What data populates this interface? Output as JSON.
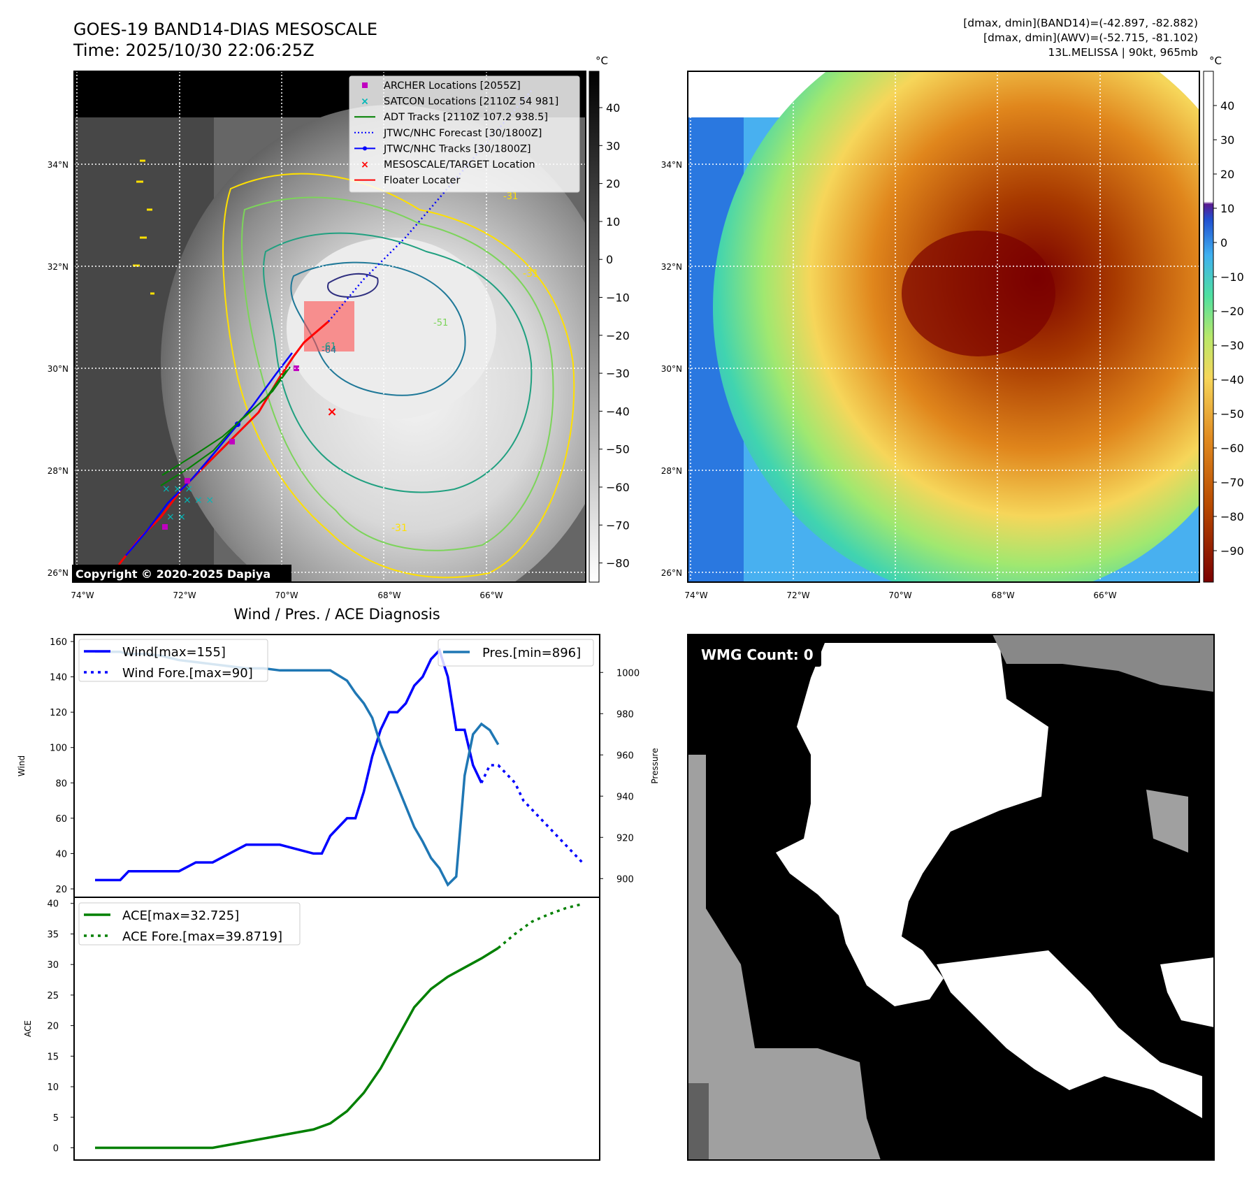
{
  "header": {
    "title": "GOES-19 BAND14-DIAS MESOSCALE",
    "time": "Time: 2025/10/30 22:06:25Z",
    "dmax_band14": "[dmax, dmin](BAND14)=(-42.897, -82.882)",
    "dmax_awv": "[dmax, dmin](AWV)=(-52.715, -81.102)",
    "storm": "13L.MELISSA | 90kt, 965mb"
  },
  "map": {
    "lat_labels": [
      "34°N",
      "32°N",
      "30°N",
      "28°N",
      "26°N"
    ],
    "lon_labels": [
      "74°W",
      "72°W",
      "70°W",
      "68°W",
      "66°W"
    ],
    "copyright": "Copyright © 2020-2025 Dapiya",
    "legend": [
      {
        "label": "ARCHER Locations [2055Z]",
        "color": "#c000c0",
        "marker": "square"
      },
      {
        "label": "SATCON Locations [2110Z 54 981]",
        "color": "#00b8b8",
        "marker": "x"
      },
      {
        "label": "ADT Tracks [2110Z 107.2 938.5]",
        "color": "#008000",
        "marker": "line"
      },
      {
        "label": "JTWC/NHC Forecast [30/1800Z]",
        "color": "#0000ff",
        "marker": "dotted"
      },
      {
        "label": "JTWC/NHC Tracks [30/1800Z]",
        "color": "#0000ff",
        "marker": "line-dot"
      },
      {
        "label": "MESOSCALE/TARGET Location",
        "color": "#ff0000",
        "marker": "x"
      },
      {
        "label": "Floater Locater",
        "color": "#ff0000",
        "marker": "line"
      }
    ],
    "contour_labels": [
      "-31",
      "-51",
      "-61",
      "-64",
      "-31",
      "-31"
    ]
  },
  "colorbar_gray": {
    "unit": "°C",
    "ticks": [
      "40",
      "30",
      "20",
      "10",
      "0",
      "−10",
      "−20",
      "−30",
      "−40",
      "−50",
      "−60",
      "−70",
      "−80"
    ]
  },
  "colorbar_color": {
    "unit": "°C",
    "ticks": [
      "40",
      "30",
      "20",
      "10",
      "0",
      "−10",
      "−20",
      "−30",
      "−40",
      "−50",
      "−60",
      "−70",
      "−80",
      "−90"
    ]
  },
  "wmg": {
    "label": "WMG Count: 0"
  },
  "chart_data": [
    {
      "type": "line",
      "title": "Wind / Pres. / ACE Diagnosis",
      "ylabel": "Wind",
      "ylabel_right": "Pressure",
      "ylim": [
        20,
        160
      ],
      "ylim_right": [
        895,
        1015
      ],
      "xlim": [
        0,
        58
      ],
      "yticks": [
        "160",
        "140",
        "120",
        "100",
        "80",
        "60",
        "40",
        "20"
      ],
      "yticks_right": [
        "1000",
        "980",
        "960",
        "940",
        "920",
        "900"
      ],
      "series": [
        {
          "name": "Wind[max=155]",
          "color": "#0000ff",
          "style": "solid",
          "x": [
            0,
            3,
            4,
            10,
            12,
            14,
            16,
            18,
            21,
            22,
            26,
            27,
            28,
            29,
            30,
            31,
            32,
            33,
            34,
            35,
            36,
            37,
            38,
            39,
            40,
            41,
            42,
            43,
            44,
            45,
            46
          ],
          "values": [
            25,
            25,
            30,
            30,
            35,
            35,
            40,
            45,
            45,
            45,
            40,
            40,
            50,
            55,
            60,
            60,
            75,
            95,
            110,
            120,
            120,
            125,
            135,
            140,
            150,
            155,
            140,
            110,
            110,
            90,
            80
          ]
        },
        {
          "name": "Wind Fore.[max=90]",
          "color": "#0000ff",
          "style": "dotted",
          "x": [
            46,
            47,
            48,
            49,
            50,
            51,
            52,
            53,
            54,
            55,
            56,
            57,
            58
          ],
          "values": [
            80,
            90,
            90,
            85,
            80,
            70,
            65,
            60,
            55,
            50,
            45,
            40,
            35
          ]
        },
        {
          "name": "Pres.[min=896]",
          "color": "#1f77b4",
          "style": "solid",
          "axis": "right",
          "x": [
            0,
            3,
            4,
            6,
            8,
            10,
            12,
            14,
            16,
            18,
            20,
            22,
            24,
            26,
            28,
            30,
            31,
            32,
            33,
            34,
            35,
            36,
            37,
            38,
            39,
            40,
            41,
            42,
            43,
            44,
            45,
            46,
            47,
            48
          ],
          "values": [
            1010,
            1010,
            1009,
            1009,
            1008,
            1006,
            1005,
            1004,
            1003,
            1002,
            1002,
            1001,
            1001,
            1001,
            1001,
            996,
            990,
            985,
            978,
            965,
            955,
            945,
            935,
            925,
            918,
            910,
            905,
            897,
            901,
            950,
            970,
            975,
            972,
            965
          ]
        }
      ]
    },
    {
      "type": "line",
      "ylabel": "ACE",
      "ylim": [
        -2,
        41
      ],
      "xlim": [
        0,
        58
      ],
      "yticks": [
        "40",
        "35",
        "30",
        "25",
        "20",
        "15",
        "10",
        "5",
        "0"
      ],
      "series": [
        {
          "name": "ACE[max=32.725]",
          "color": "#008000",
          "style": "solid",
          "x": [
            0,
            5,
            10,
            14,
            16,
            18,
            20,
            22,
            24,
            26,
            28,
            30,
            32,
            34,
            36,
            38,
            40,
            42,
            44,
            46,
            48
          ],
          "values": [
            0,
            0,
            0,
            0,
            0.5,
            1,
            1.5,
            2,
            2.5,
            3,
            4,
            6,
            9,
            13,
            18,
            23,
            26,
            28,
            29.5,
            31,
            32.7
          ]
        },
        {
          "name": "ACE Fore.[max=39.8719]",
          "color": "#008000",
          "style": "dotted",
          "x": [
            48,
            50,
            52,
            54,
            56,
            58
          ],
          "values": [
            32.7,
            35,
            37,
            38.2,
            39.2,
            39.9
          ]
        }
      ]
    }
  ]
}
